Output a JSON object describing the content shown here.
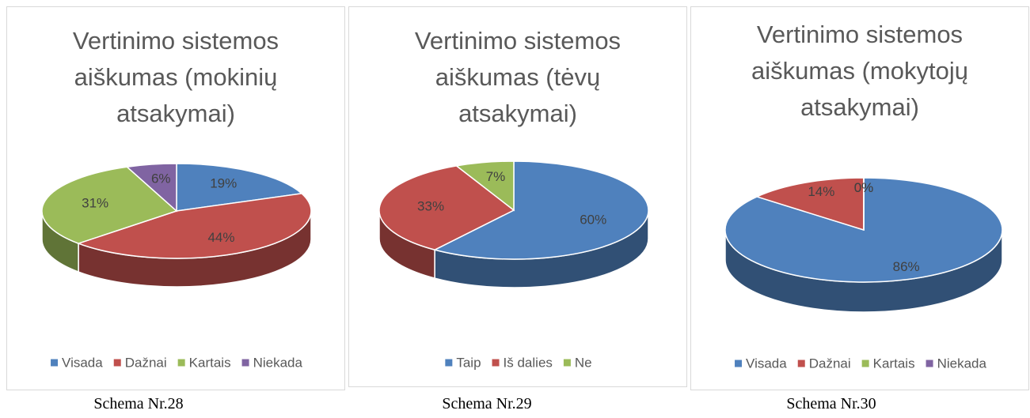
{
  "chart_data": [
    {
      "type": "pie",
      "title": "Vertinimo sistemos aiškumas (mokinių atsakymai)",
      "categories": [
        "Visada",
        "Dažnai",
        "Kartais",
        "Niekada"
      ],
      "values": [
        19,
        44,
        31,
        6
      ],
      "value_labels": [
        "19%",
        "44%",
        "31%",
        "6%"
      ],
      "colors": [
        "#4f81bd",
        "#c0504d",
        "#9bbb59",
        "#8064a2"
      ],
      "legend": "bottom"
    },
    {
      "type": "pie",
      "title": "Vertinimo sistemos aiškumas (tėvų atsakymai)",
      "categories": [
        "Taip",
        "Iš dalies",
        "Ne"
      ],
      "values": [
        60,
        33,
        7
      ],
      "value_labels": [
        "60%",
        "33%",
        "7%"
      ],
      "colors": [
        "#4f81bd",
        "#c0504d",
        "#9bbb59"
      ],
      "legend": "bottom"
    },
    {
      "type": "pie",
      "title": "Vertinimo sistemos aiškumas (mokytojų atsakymai)",
      "categories": [
        "Visada",
        "Dažnai",
        "Kartais",
        "Niekada"
      ],
      "values": [
        86,
        14,
        0,
        0
      ],
      "value_labels": [
        "86%",
        "14%",
        "0%",
        "0%"
      ],
      "colors": [
        "#4f81bd",
        "#c0504d",
        "#9bbb59",
        "#8064a2"
      ],
      "legend": "bottom"
    }
  ],
  "captions": [
    "Schema Nr.28",
    "Schema Nr.29",
    "Schema Nr.30"
  ]
}
